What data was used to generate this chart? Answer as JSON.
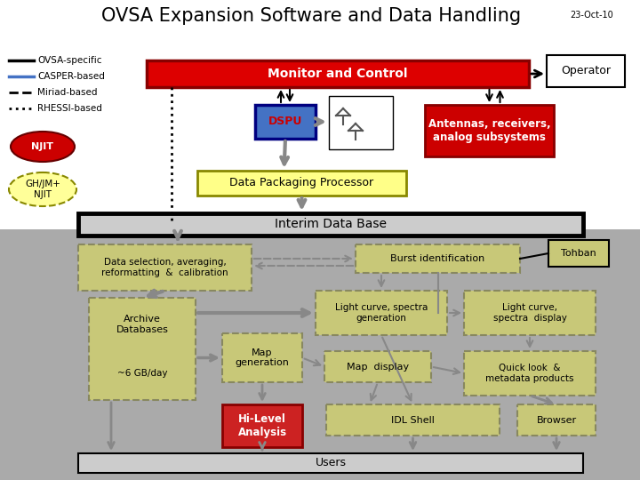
{
  "title": "OVSA Expansion Software and Data Handling",
  "date_label": "23-Oct-10",
  "background_color": "#ffffff",
  "lower_bg_color": "#aaaaaa",
  "legend_items": [
    {
      "label": "OVSA-specific",
      "style": "solid",
      "color": "#000000"
    },
    {
      "label": "CASPER-based",
      "style": "solid",
      "color": "#4472c4"
    },
    {
      "label": "Miriad-based",
      "style": "dashed",
      "color": "#000000"
    },
    {
      "label": "RHESSI-based",
      "style": "dotted",
      "color": "#000000"
    }
  ],
  "njit_ellipse": {
    "label": "NJIT",
    "bg": "#cc0000",
    "text": "#ffffff"
  },
  "ghjm_ellipse": {
    "label": "GH/JM+\nNJIT",
    "bg": "#ffff99",
    "text": "#000000"
  },
  "monitor_control_box": {
    "label": "Monitor and Control",
    "bg": "#dd0000",
    "text": "#ffffff"
  },
  "operator_box": {
    "label": "Operator",
    "bg": "#ffffff",
    "text": "#000000"
  },
  "dspu_box": {
    "label": "DSPU",
    "bg": "#4472c4",
    "text": "#cc0000"
  },
  "antennas_box": {
    "label": "Antennas, receivers,\nanalog subsystems",
    "bg": "#cc0000",
    "text": "#ffffff"
  },
  "dpp_box": {
    "label": "Data Packaging Processor",
    "bg": "#ffff88",
    "text": "#000000"
  },
  "idb_box": {
    "label": "Interim Data Base",
    "bg": "#cccccc",
    "text": "#000000"
  },
  "data_sel_box": {
    "label": "Data selection, averaging,\nreformatting  &  calibration",
    "bg": "#c8c878",
    "text": "#000000"
  },
  "burst_id_box": {
    "label": "Burst identification",
    "bg": "#c8c878",
    "text": "#000000"
  },
  "tohban_box": {
    "label": "Tohban",
    "bg": "#c8c878",
    "text": "#000000"
  },
  "archive_box_top": "Archive\nDatabases",
  "archive_box_bot": "~6 GB/day",
  "archive_bg": "#c8c878",
  "map_gen_box": {
    "label": "Map\ngeneration",
    "bg": "#c8c878",
    "text": "#000000"
  },
  "lc_spec_gen_box": {
    "label": "Light curve, spectra\ngeneration",
    "bg": "#c8c878",
    "text": "#000000"
  },
  "lc_spec_disp_box": {
    "label": "Light curve,\nspectra  display",
    "bg": "#c8c878",
    "text": "#000000"
  },
  "map_disp_box": {
    "label": "Map  display",
    "bg": "#c8c878",
    "text": "#000000"
  },
  "quick_look_box": {
    "label": "Quick look  &\nmetadata products",
    "bg": "#c8c878",
    "text": "#000000"
  },
  "hilevel_box": {
    "label": "Hi-Level\nAnalysis",
    "bg": "#cc2222",
    "text": "#ffffff"
  },
  "idl_shell_box": {
    "label": "IDL Shell",
    "bg": "#c8c878",
    "text": "#000000"
  },
  "browser_box": {
    "label": "Browser",
    "bg": "#c8c878",
    "text": "#000000"
  },
  "users_box": {
    "label": "Users",
    "bg": "#cccccc",
    "text": "#000000"
  },
  "arrow_color": "#888888",
  "dark_arrow": "#555555"
}
